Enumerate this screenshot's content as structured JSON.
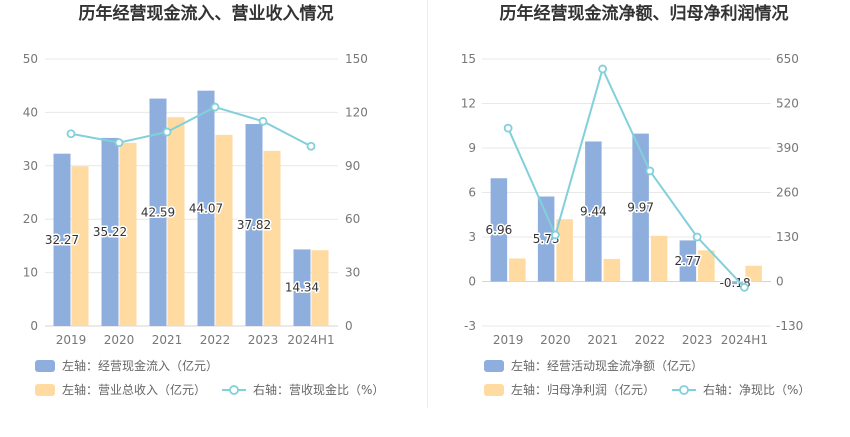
{
  "chart_data": [
    {
      "type": "bar",
      "title": "历年经营现金流入、营业收入情况",
      "categories": [
        "2019",
        "2020",
        "2021",
        "2022",
        "2023",
        "2024H1"
      ],
      "y_left": {
        "range": [
          0,
          50
        ],
        "ticks": [
          0,
          10,
          20,
          30,
          40,
          50
        ]
      },
      "y_right": {
        "range": [
          0,
          150
        ],
        "ticks": [
          0,
          30,
          60,
          90,
          120,
          150
        ]
      },
      "series": [
        {
          "name": "左轴：经营现金流入（亿元）",
          "type": "bar",
          "axis": "left",
          "color": "#8EAFDD",
          "show_labels": true,
          "values": [
            32.27,
            35.22,
            42.59,
            44.07,
            37.82,
            14.34
          ]
        },
        {
          "name": "左轴：营业总收入（亿元）",
          "type": "bar",
          "axis": "left",
          "color": "#FFDAA1",
          "show_labels": false,
          "values": [
            29.9,
            34.3,
            39.1,
            35.8,
            32.8,
            14.2
          ]
        },
        {
          "name": "右轴：营收现金比（%）",
          "type": "line",
          "axis": "right",
          "color": "#82D0DA",
          "show_labels": false,
          "values": [
            108,
            103,
            109,
            123,
            115,
            101
          ]
        }
      ],
      "grid": true,
      "legend_position": "bottom-left"
    },
    {
      "type": "bar",
      "title": "历年经营现金流净额、归母净利润情况",
      "categories": [
        "2019",
        "2020",
        "2021",
        "2022",
        "2023",
        "2024H1"
      ],
      "y_left": {
        "range": [
          -3,
          15
        ],
        "ticks": [
          -3,
          0,
          3,
          6,
          9,
          12,
          15
        ]
      },
      "y_right": {
        "range": [
          -130,
          650
        ],
        "ticks": [
          -130,
          0,
          130,
          260,
          390,
          520,
          650
        ]
      },
      "series": [
        {
          "name": "左轴：经营活动现金流净额（亿元）",
          "type": "bar",
          "axis": "left",
          "color": "#8EAFDD",
          "show_labels": true,
          "values": [
            6.96,
            5.73,
            9.44,
            9.97,
            2.77,
            -0.18
          ]
        },
        {
          "name": "左轴：归母净利润（亿元）",
          "type": "bar",
          "axis": "left",
          "color": "#FFDAA1",
          "show_labels": false,
          "values": [
            1.55,
            4.2,
            1.52,
            3.08,
            2.1,
            1.06
          ]
        },
        {
          "name": "右轴：净现比（%）",
          "type": "line",
          "axis": "right",
          "color": "#82D0DA",
          "show_labels": false,
          "values": [
            448,
            136,
            621,
            323,
            130,
            -17
          ]
        }
      ],
      "grid": true,
      "legend_position": "bottom-left"
    }
  ]
}
